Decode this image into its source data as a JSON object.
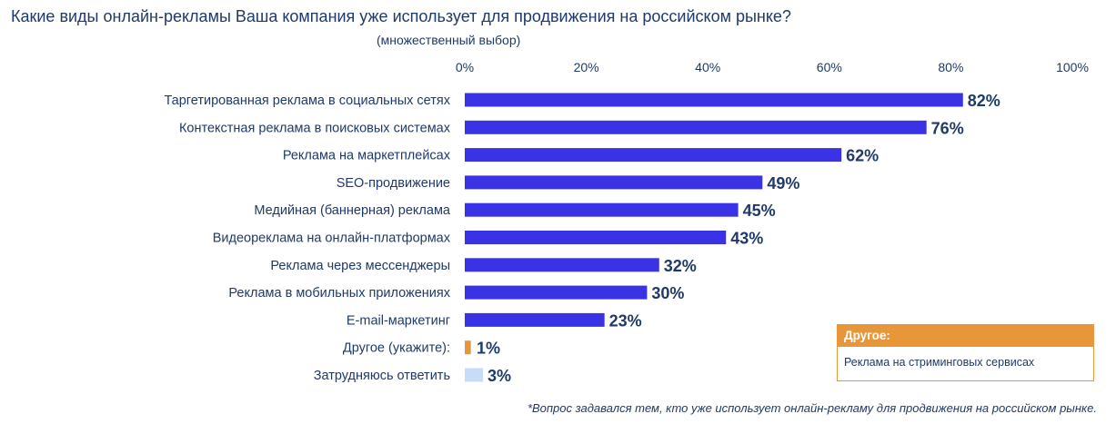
{
  "chart_data": {
    "type": "bar",
    "orientation": "horizontal",
    "title": "Какие виды онлайн-рекламы Ваша компания уже использует для продвижения на российском рынке?",
    "subtitle": "(множественный выбор)",
    "xlim": [
      0,
      100
    ],
    "x_ticks": [
      "0%",
      "20%",
      "40%",
      "60%",
      "80%",
      "100%"
    ],
    "grid": false,
    "categories": [
      "Таргетированная реклама в социальных сетях",
      "Контекстная реклама в поисковых системах",
      "Реклама на маркетплейсах",
      "SEO-продвижение",
      "Медийная (баннерная) реклама",
      "Видеореклама на онлайн-платформах",
      "Реклама через мессенджеры",
      "Реклама в мобильных приложениях",
      "E-mail-маркетинг",
      "Другое (укажите):",
      "Затрудняюсь ответить"
    ],
    "values": [
      82,
      76,
      62,
      49,
      45,
      43,
      32,
      30,
      23,
      1,
      3
    ],
    "value_labels": [
      "82%",
      "76%",
      "62%",
      "49%",
      "45%",
      "43%",
      "32%",
      "30%",
      "23%",
      "1%",
      "3%"
    ],
    "bar_colors": [
      "#3a33e6",
      "#3a33e6",
      "#3a33e6",
      "#3a33e6",
      "#3a33e6",
      "#3a33e6",
      "#3a33e6",
      "#3a33e6",
      "#3a33e6",
      "#e8963a",
      "#c9dcf7"
    ],
    "footnote": "*Вопрос задавался тем, кто уже использует онлайн-рекламу для продвижения на российском рынке."
  },
  "other_box": {
    "header": "Другое:",
    "text": "Реклама на стриминговых сервисах",
    "accent_color": "#e8963a"
  },
  "colors": {
    "text": "#1f3a68",
    "primary_bar": "#3a33e6",
    "other_bar": "#e8963a",
    "unsure_bar": "#c9dcf7"
  }
}
